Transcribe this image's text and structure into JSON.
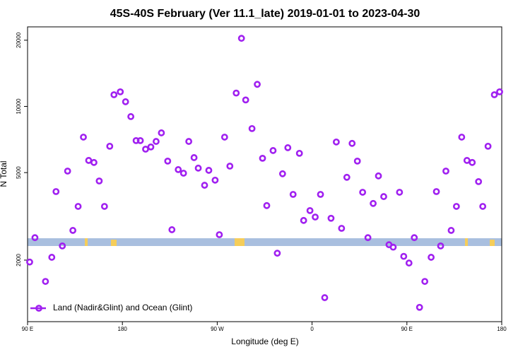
{
  "chart_data": {
    "type": "scatter",
    "title": "45S-40S February (Ver 11.1_late)   2019-01-01 to 2023-04-30",
    "x_label": "Longitude (deg E)",
    "y_label": "N Total",
    "x": [
      92,
      97,
      107,
      113,
      117,
      123,
      128,
      133,
      138,
      143,
      148,
      153,
      158,
      163,
      168,
      172,
      178,
      183,
      188,
      193,
      197,
      202,
      207,
      212,
      217,
      223,
      227,
      233,
      238,
      243,
      248,
      252,
      258,
      262,
      268,
      272,
      277,
      282,
      288,
      293,
      297,
      303,
      308,
      313,
      317,
      323,
      327,
      332,
      337,
      342,
      348,
      352,
      358,
      363,
      368,
      372,
      378,
      383,
      388,
      393,
      398,
      403,
      408,
      413,
      418,
      423,
      428,
      433,
      437,
      443,
      447,
      452,
      457,
      462,
      467,
      473,
      478,
      482,
      487,
      492,
      497,
      502,
      507,
      512,
      518,
      522,
      527,
      533,
      538
    ],
    "series": [
      {
        "name": "Land (Nadir&Glint) and Ocean (Glint)",
        "color": "#a020f0",
        "values": [
          1960,
          2530,
          1600,
          2060,
          4100,
          2320,
          5080,
          2730,
          3510,
          7250,
          5680,
          5560,
          4580,
          3510,
          6590,
          11300,
          11650,
          10500,
          8990,
          6990,
          6990,
          6390,
          6540,
          6930,
          7580,
          5640,
          2750,
          5160,
          4970,
          6930,
          5850,
          5240,
          4380,
          5120,
          4620,
          2610,
          7250,
          5350,
          11500,
          20400,
          10700,
          7930,
          12600,
          5810,
          3540,
          6300,
          2150,
          4940,
          6490,
          3980,
          6120,
          3030,
          3360,
          3140,
          3980,
          1350,
          3100,
          6890,
          2790,
          4760,
          6790,
          5640,
          4070,
          2530,
          3620,
          4830,
          3890,
          2350,
          2290,
          4070,
          2080,
          1940,
          2530,
          1220,
          1600,
          2060,
          4100,
          2320,
          5080,
          2730,
          3510,
          7250,
          5680,
          5560,
          4550,
          3510,
          6590,
          11300,
          11650
        ]
      }
    ],
    "xlim": [
      90,
      540
    ],
    "xticks": [
      {
        "value": 90,
        "label": "90 E"
      },
      180,
      {
        "value": 270,
        "label": "90 W"
      },
      {
        "value": 360,
        "label": "0"
      },
      {
        "value": 450,
        "label": "90 E"
      },
      {
        "value": 540,
        "label": "180"
      }
    ],
    "ylim": [
      1050,
      23000
    ],
    "yticks": [
      2000,
      5000,
      10000,
      20000
    ],
    "ylog": true,
    "legend": "bottom-left"
  }
}
